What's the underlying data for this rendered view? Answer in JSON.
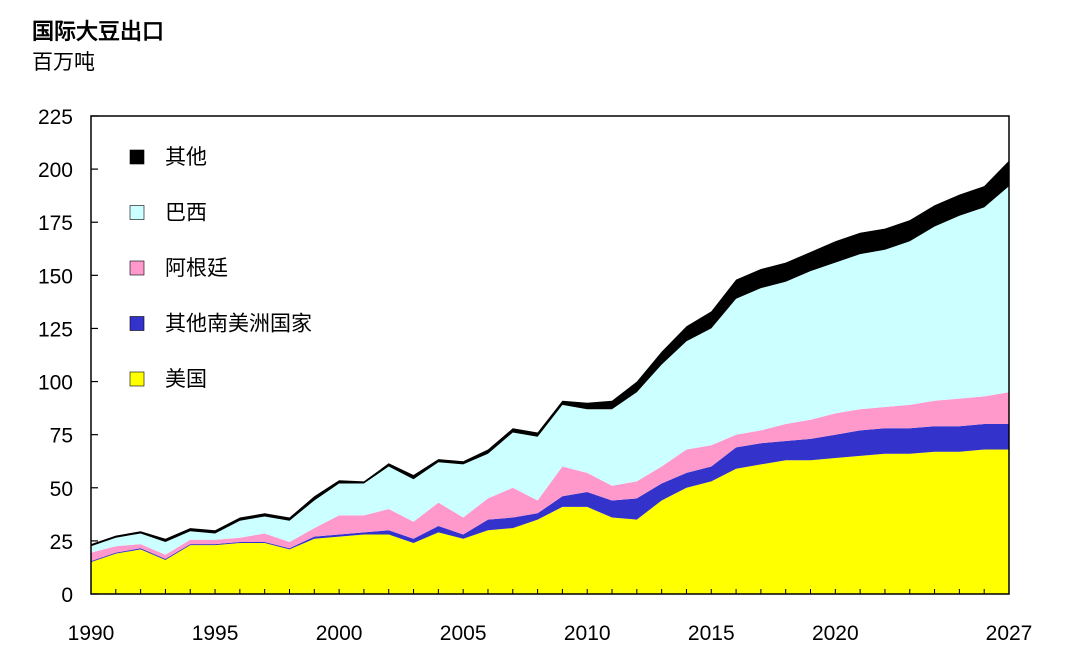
{
  "chart_data": {
    "type": "area",
    "stacked": true,
    "title": "国际大豆出口",
    "subtitle": "百万吨",
    "ylim": [
      0,
      225
    ],
    "y_ticks": [
      0,
      25,
      50,
      75,
      100,
      125,
      150,
      175,
      200,
      225
    ],
    "xlim": [
      1990,
      2027
    ],
    "x_ticks": [
      1990,
      1995,
      2000,
      2005,
      2010,
      2015,
      2020,
      2027
    ],
    "grid": false,
    "legend_position": "top-left",
    "x": [
      1990,
      1991,
      1992,
      1993,
      1994,
      1995,
      1996,
      1997,
      1998,
      1999,
      2000,
      2001,
      2002,
      2003,
      2004,
      2005,
      2006,
      2007,
      2008,
      2009,
      2010,
      2011,
      2012,
      2013,
      2014,
      2015,
      2016,
      2017,
      2018,
      2019,
      2020,
      2021,
      2022,
      2023,
      2024,
      2025,
      2026,
      2027
    ],
    "series": [
      {
        "name": "美国",
        "color": "#ffff00",
        "values": [
          15,
          19,
          21,
          16,
          23,
          23,
          24,
          24,
          21,
          26,
          27,
          28,
          28,
          24,
          29,
          26,
          30,
          31,
          35,
          41,
          41,
          36,
          35,
          44,
          50,
          53,
          59,
          61,
          63,
          63,
          64,
          65,
          66,
          66,
          67,
          67,
          68,
          68
        ]
      },
      {
        "name": "其他南美洲国家",
        "color": "#3333cc",
        "values": [
          0.5,
          0.5,
          0.5,
          0.5,
          0.5,
          0.5,
          0.5,
          0.5,
          0.5,
          1,
          1,
          1,
          2,
          2,
          3,
          2,
          5,
          5,
          3,
          5,
          7,
          8,
          10,
          8,
          7,
          7,
          10,
          10,
          9,
          10,
          11,
          12,
          12,
          12,
          12,
          12,
          12,
          12
        ]
      },
      {
        "name": "阿根廷",
        "color": "#ff99cc",
        "values": [
          4,
          3,
          2,
          2,
          2,
          2,
          2,
          4,
          3,
          4,
          9,
          8,
          10,
          8,
          11,
          8,
          10,
          14,
          6,
          14,
          9,
          7,
          8,
          8,
          11,
          10,
          6,
          6,
          8,
          9,
          10,
          10,
          10,
          11,
          12,
          13,
          13,
          15
        ]
      },
      {
        "name": "巴西",
        "color": "#ccffff",
        "values": [
          3,
          4,
          5,
          6,
          4,
          3,
          8,
          8,
          10,
          13,
          15,
          15,
          20,
          20,
          19,
          25,
          21,
          26,
          30,
          29,
          30,
          36,
          42,
          48,
          51,
          55,
          64,
          67,
          67,
          70,
          71,
          73,
          74,
          77,
          82,
          86,
          89,
          97
        ]
      },
      {
        "name": "其他",
        "color": "#000000",
        "values": [
          1,
          1,
          1,
          1.5,
          1.5,
          1.5,
          1.5,
          1.5,
          1.5,
          2,
          1.5,
          1,
          1.5,
          2,
          1.5,
          1.5,
          2,
          2,
          2,
          2,
          3,
          4,
          5,
          6,
          7,
          8,
          9,
          9,
          9,
          9,
          10,
          10,
          10,
          10,
          10,
          10,
          10,
          12
        ]
      }
    ]
  }
}
